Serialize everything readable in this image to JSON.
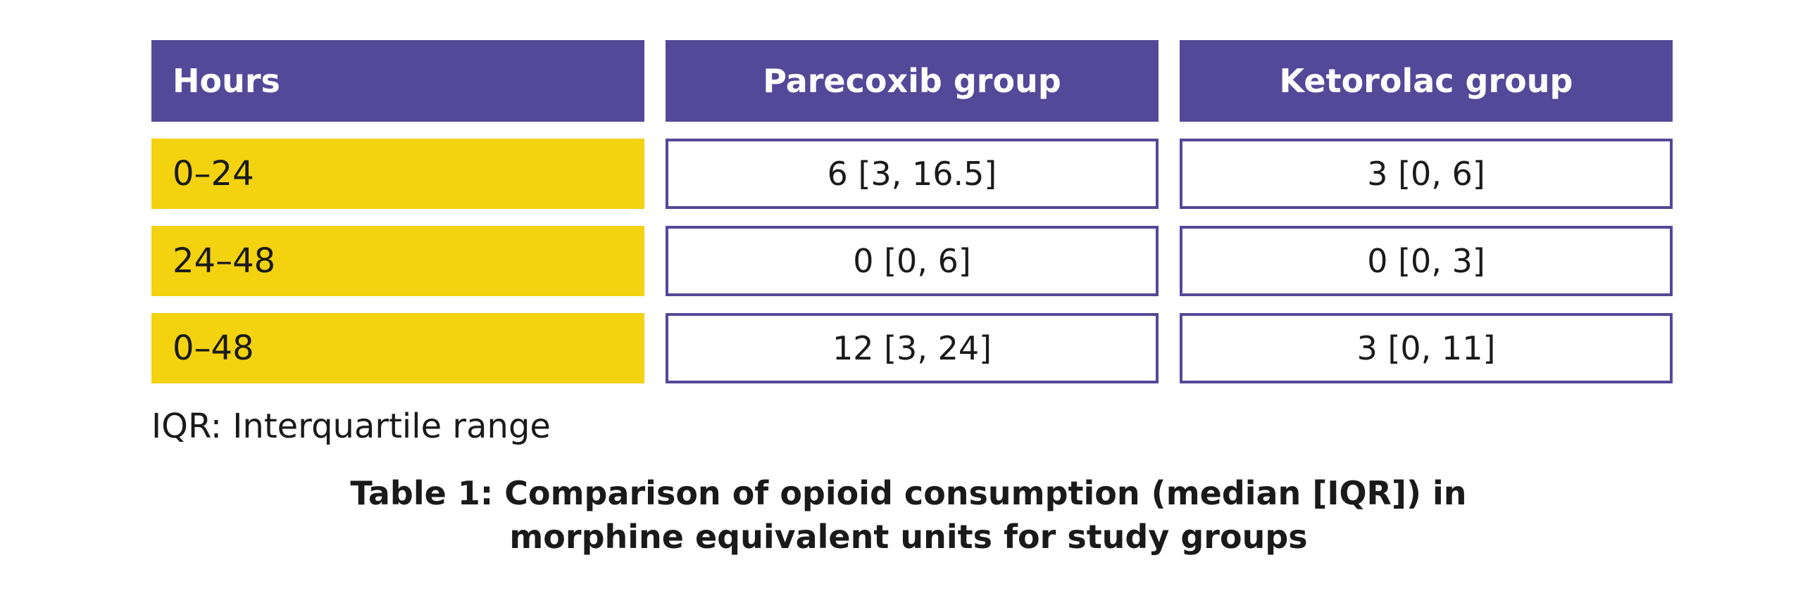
{
  "table": {
    "headers": [
      "Hours",
      "Parecoxib group",
      "Ketorolac group"
    ],
    "rows": [
      {
        "hours": "0–24",
        "parecoxib": "6 [3, 16.5]",
        "ketorolac": "3 [0, 6]"
      },
      {
        "hours": "24–48",
        "parecoxib": "0 [0, 6]",
        "ketorolac": "0 [0, 3]"
      },
      {
        "hours": "0–48",
        "parecoxib": "12 [3, 24]",
        "ketorolac": "3 [0, 11]"
      }
    ]
  },
  "footnote": "IQR: Interquartile range",
  "caption": {
    "line1": "Table 1: Comparison of opioid consumption (median [IQR]) in",
    "line2": "morphine equivalent units for study groups"
  },
  "colors": {
    "header_bg": "#544899",
    "row_label_bg": "#f3d210",
    "cell_border": "#544899"
  }
}
